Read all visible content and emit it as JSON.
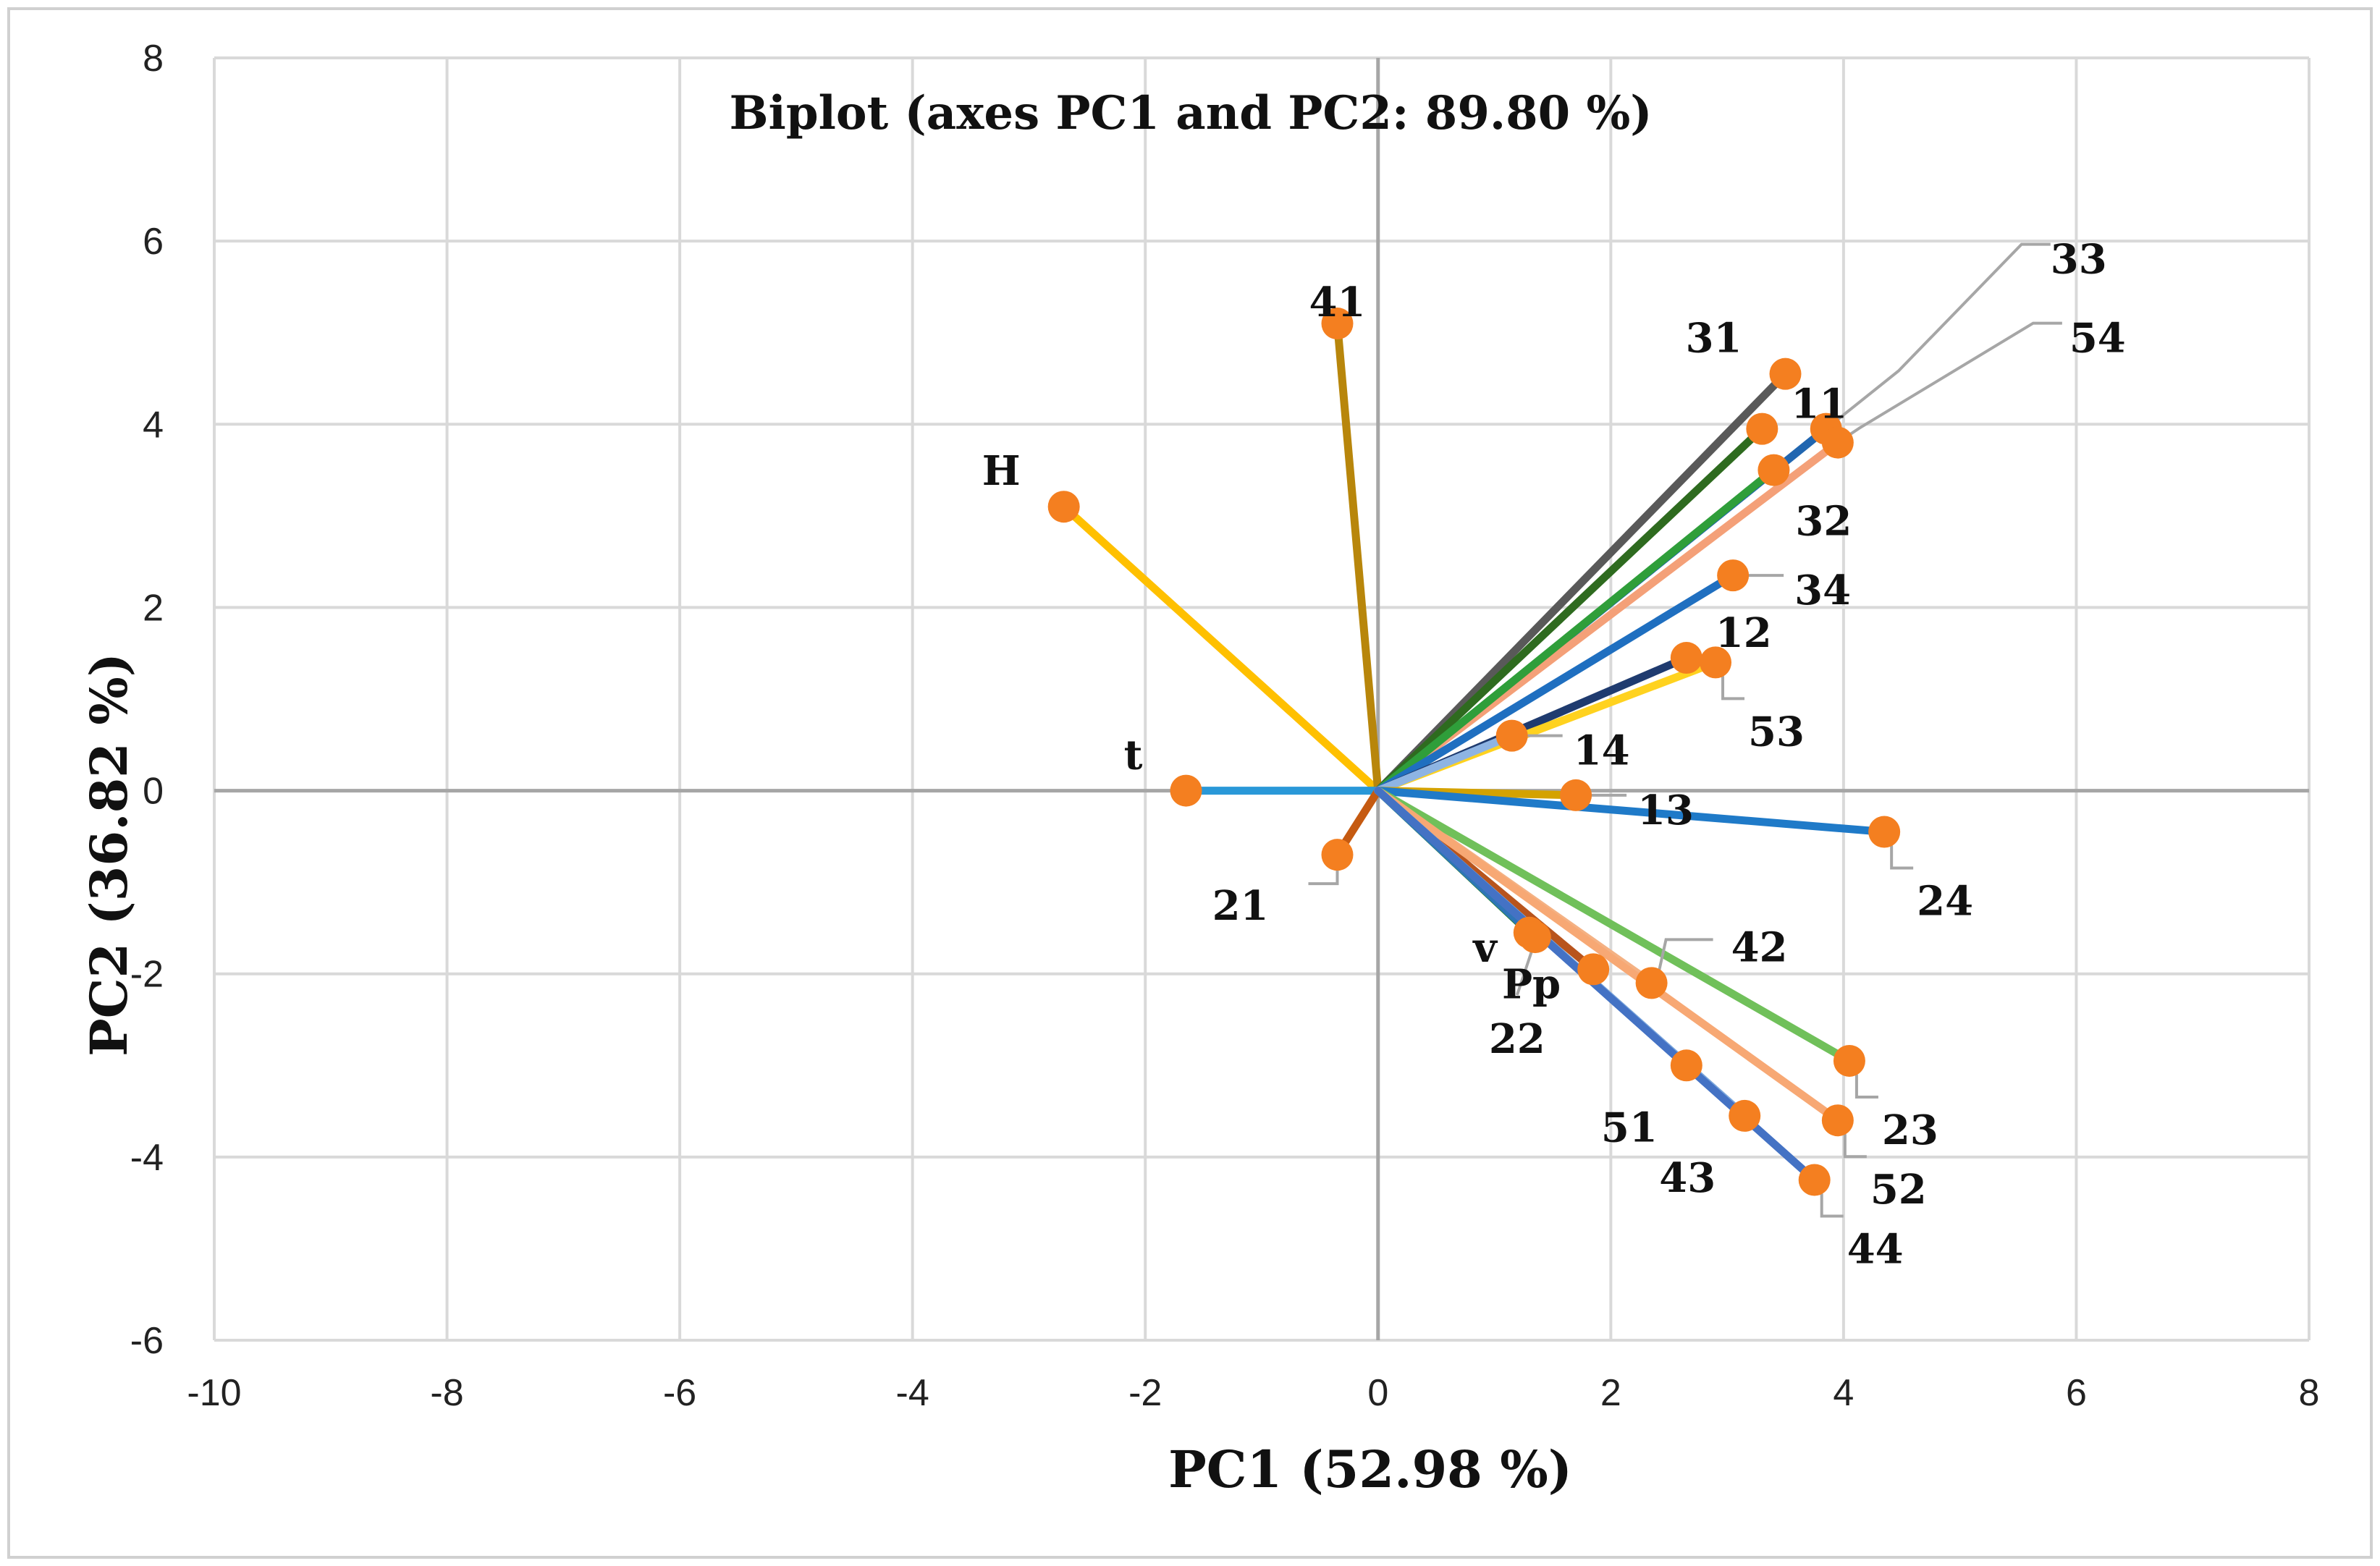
{
  "chart_data": {
    "type": "scatter",
    "subtype": "biplot",
    "title": "Biplot (axes PC1 and PC2: 89.80 %)",
    "xlabel": "PC1 (52.98 %)",
    "ylabel": "PC2 (36.82 %)",
    "xlim": [
      -10,
      8
    ],
    "ylim": [
      -6,
      8
    ],
    "xticks": [
      -10,
      -8,
      -6,
      -4,
      -2,
      0,
      2,
      4,
      6,
      8
    ],
    "yticks": [
      -6,
      -4,
      -2,
      0,
      2,
      4,
      6,
      8
    ],
    "grid": true,
    "marker_color": "#f47f20",
    "leader_color": "#a6a6a6",
    "vectors": [
      {
        "label": "H",
        "x": -2.7,
        "y": 3.1,
        "color": "#ffc000",
        "label_pos": "upper-left"
      },
      {
        "label": "41",
        "x": -0.35,
        "y": 5.1,
        "color": "#b8860b",
        "label_pos": "above"
      },
      {
        "label": "t",
        "x": -1.65,
        "y": 0.0,
        "color": "#2a98d8",
        "label_pos": "upper-left"
      },
      {
        "label": "21",
        "x": -0.35,
        "y": -0.7,
        "color": "#c55a11",
        "label_pos": "leader-lower-left"
      },
      {
        "label": "31",
        "x": 3.5,
        "y": 4.55,
        "color": "#595959",
        "label_pos": "upper-left"
      },
      {
        "label": "11",
        "x": 3.3,
        "y": 3.95,
        "color": "#2e6b1f",
        "label_pos": "upper-right"
      },
      {
        "label": "33",
        "x": 3.85,
        "y": 3.95,
        "color": "#2166b0",
        "label_pos": "leader-far-upper-right"
      },
      {
        "label": "54",
        "x": 3.95,
        "y": 3.8,
        "color": "#f4a078",
        "label_pos": "leader-far-right"
      },
      {
        "label": "32",
        "x": 3.4,
        "y": 3.5,
        "color": "#2f9e3a",
        "label_pos": "lower-right"
      },
      {
        "label": "34",
        "x": 3.05,
        "y": 2.35,
        "color": "#1f6fc0",
        "label_pos": "leader-right"
      },
      {
        "label": "12",
        "x": 2.65,
        "y": 1.45,
        "color": "#1f3b6f",
        "label_pos": "upper-right"
      },
      {
        "label": "53",
        "x": 2.9,
        "y": 1.4,
        "color": "#ffd21f",
        "label_pos": "leader-lower-right"
      },
      {
        "label": "14",
        "x": 1.15,
        "y": 0.6,
        "color": "#8eb4e3",
        "label_pos": "leader-right"
      },
      {
        "label": "13",
        "x": 1.7,
        "y": -0.05,
        "color": "#d4a200",
        "label_pos": "leader-right"
      },
      {
        "label": "24",
        "x": 4.35,
        "y": -0.45,
        "color": "#1f7ac8",
        "label_pos": "leader-lower-right"
      },
      {
        "label": "v",
        "x": 1.3,
        "y": -1.55,
        "color": "#1f7f1f",
        "label_pos": "left"
      },
      {
        "label": "Pp",
        "x": 1.85,
        "y": -1.95,
        "color": "#b8541d",
        "label_pos": "left"
      },
      {
        "label": "42",
        "x": 2.35,
        "y": -2.1,
        "color": "#f4b183",
        "label_pos": "leader-upper-right"
      },
      {
        "label": "22",
        "x": 1.35,
        "y": -1.6,
        "color": "#2e75b6",
        "label_pos": "leader-below"
      },
      {
        "label": "23",
        "x": 4.05,
        "y": -2.95,
        "color": "#70c05a",
        "label_pos": "leader-lower-right"
      },
      {
        "label": "51",
        "x": 2.65,
        "y": -3.0,
        "color": "#5b9bd5",
        "label_pos": "lower-left"
      },
      {
        "label": "52",
        "x": 3.95,
        "y": -3.6,
        "color": "#f7a874",
        "label_pos": "leader-lower-right"
      },
      {
        "label": "43",
        "x": 3.15,
        "y": -3.55,
        "color": "#7aa6dc",
        "label_pos": "lower-left"
      },
      {
        "label": "44",
        "x": 3.75,
        "y": -4.25,
        "color": "#4472c4",
        "label_pos": "leader-lower-right"
      }
    ]
  }
}
